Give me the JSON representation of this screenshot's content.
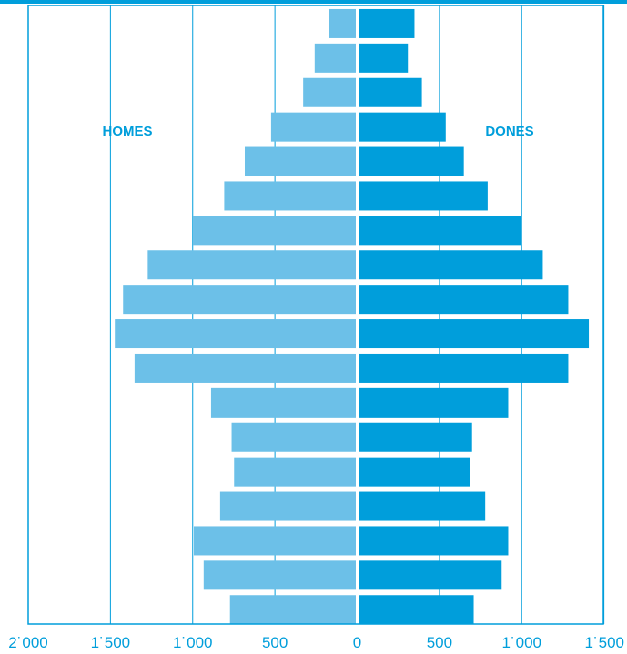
{
  "chart_data": {
    "type": "bar",
    "title": "",
    "xlabel": "",
    "ylabel": "",
    "orientation": "horizontal-population-pyramid",
    "left_series": {
      "name": "HOMES",
      "color": "#6CC0E8",
      "values": [
        165,
        250,
        320,
        515,
        675,
        800,
        990,
        1265,
        1415,
        1465,
        1345,
        880,
        755,
        740,
        825,
        985,
        925,
        765
      ]
    },
    "right_series": {
      "name": "DONES",
      "color": "#009EDB",
      "values": [
        340,
        300,
        385,
        530,
        640,
        785,
        985,
        1120,
        1275,
        1400,
        1275,
        910,
        690,
        680,
        770,
        910,
        870,
        700
      ]
    },
    "x_ticks_left": [
      "2˙000",
      "1˙500",
      "1˙000",
      "500"
    ],
    "x_ticks_center": "0",
    "x_ticks_right": [
      "500",
      "1˙000",
      "1˙500"
    ],
    "x_range_left": [
      0,
      2000
    ],
    "x_range_right": [
      0,
      1500
    ],
    "grid": true,
    "frame_color": "#009EDB"
  }
}
